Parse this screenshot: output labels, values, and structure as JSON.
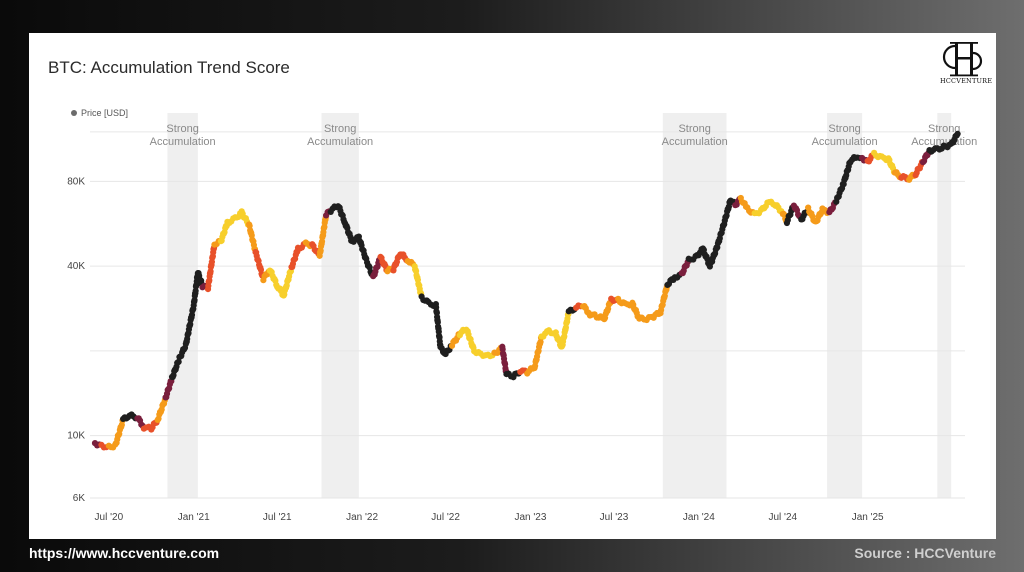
{
  "footer": {
    "website": "https://www.hccventure.com",
    "source": "Source : HCCVenture"
  },
  "logo": {
    "name": "hccventure-logo",
    "text": "HCCVENTURE"
  },
  "chart_data": {
    "type": "scatter",
    "title": "BTC: Accumulation Trend Score",
    "legend": {
      "label": "Price [USD]",
      "placement": "top-left"
    },
    "x_axis": {
      "type": "date",
      "range": [
        "2020-06-01",
        "2025-07-31"
      ],
      "tick_labels": [
        {
          "date": "2020-07-01",
          "label": "Jul '20"
        },
        {
          "date": "2021-01-01",
          "label": "Jan '21"
        },
        {
          "date": "2021-07-01",
          "label": "Jul '21"
        },
        {
          "date": "2022-01-01",
          "label": "Jan '22"
        },
        {
          "date": "2022-07-01",
          "label": "Jul '22"
        },
        {
          "date": "2023-01-01",
          "label": "Jan '23"
        },
        {
          "date": "2023-07-01",
          "label": "Jul '23"
        },
        {
          "date": "2024-01-01",
          "label": "Jan '24"
        },
        {
          "date": "2024-07-01",
          "label": "Jul '24"
        },
        {
          "date": "2025-01-01",
          "label": "Jan '25"
        }
      ]
    },
    "y_axis": {
      "scale": "log",
      "range": [
        6000,
        140000
      ],
      "tick_labels": [
        {
          "value": 6000,
          "label": "6K"
        },
        {
          "value": 10000,
          "label": "10K"
        },
        {
          "value": 40000,
          "label": "40K"
        },
        {
          "value": 80000,
          "label": "80K"
        }
      ],
      "gridlines": [
        6000,
        10000,
        20000,
        40000,
        80000,
        120000
      ]
    },
    "grid": true,
    "shaded_regions": [
      {
        "label": "Strong Accumulation",
        "start": "2020-11-05",
        "end": "2021-01-10"
      },
      {
        "label": "Strong Accumulation",
        "start": "2021-10-05",
        "end": "2021-12-25"
      },
      {
        "label": "Strong Accumulation",
        "start": "2023-10-15",
        "end": "2024-03-01"
      },
      {
        "label": "Strong Accumulation",
        "start": "2024-10-05",
        "end": "2024-12-20"
      },
      {
        "label": "Strong Accumulation",
        "start": "2025-06-01",
        "end": "2025-07-01"
      }
    ],
    "score_colors": {
      "strong": "#1f1f1f",
      "high": "#7a1f3d",
      "mid": "#e8512a",
      "low": "#f59b1a",
      "weak": "#f7cf2c"
    },
    "series": [
      {
        "data": [
          [
            "2020-06-01",
            9400,
            "high"
          ],
          [
            "2020-06-15",
            9200,
            "mid"
          ],
          [
            "2020-07-01",
            9100,
            "low"
          ],
          [
            "2020-07-15",
            9200,
            "low"
          ],
          [
            "2020-08-01",
            11400,
            "strong"
          ],
          [
            "2020-08-15",
            11800,
            "strong"
          ],
          [
            "2020-09-01",
            11600,
            "high"
          ],
          [
            "2020-09-15",
            10700,
            "mid"
          ],
          [
            "2020-10-01",
            10600,
            "mid"
          ],
          [
            "2020-10-15",
            11400,
            "low"
          ],
          [
            "2020-11-01",
            13600,
            "high"
          ],
          [
            "2020-11-15",
            16000,
            "strong"
          ],
          [
            "2020-12-01",
            18800,
            "strong"
          ],
          [
            "2020-12-15",
            21000,
            "strong"
          ],
          [
            "2021-01-01",
            29000,
            "strong"
          ],
          [
            "2021-01-10",
            38000,
            "strong"
          ],
          [
            "2021-01-20",
            34000,
            "high"
          ],
          [
            "2021-02-01",
            33500,
            "mid"
          ],
          [
            "2021-02-15",
            48000,
            "low"
          ],
          [
            "2021-03-01",
            49000,
            "weak"
          ],
          [
            "2021-03-15",
            57000,
            "weak"
          ],
          [
            "2021-04-01",
            59000,
            "weak"
          ],
          [
            "2021-04-15",
            62000,
            "weak"
          ],
          [
            "2021-05-01",
            56000,
            "low"
          ],
          [
            "2021-05-15",
            45000,
            "mid"
          ],
          [
            "2021-06-01",
            36000,
            "low"
          ],
          [
            "2021-06-15",
            39000,
            "weak"
          ],
          [
            "2021-07-01",
            34000,
            "weak"
          ],
          [
            "2021-07-15",
            31500,
            "weak"
          ],
          [
            "2021-08-01",
            39500,
            "mid"
          ],
          [
            "2021-08-15",
            46000,
            "mid"
          ],
          [
            "2021-09-01",
            48000,
            "low"
          ],
          [
            "2021-09-15",
            47500,
            "mid"
          ],
          [
            "2021-10-01",
            43500,
            "low"
          ],
          [
            "2021-10-15",
            61000,
            "high"
          ],
          [
            "2021-10-25",
            63000,
            "strong"
          ],
          [
            "2021-11-10",
            66000,
            "strong"
          ],
          [
            "2021-11-25",
            57000,
            "strong"
          ],
          [
            "2021-12-10",
            49000,
            "strong"
          ],
          [
            "2021-12-25",
            50500,
            "strong"
          ],
          [
            "2022-01-10",
            42000,
            "strong"
          ],
          [
            "2022-01-25",
            36500,
            "high"
          ],
          [
            "2022-02-10",
            43000,
            "mid"
          ],
          [
            "2022-02-25",
            38500,
            "low"
          ],
          [
            "2022-03-10",
            39000,
            "mid"
          ],
          [
            "2022-03-25",
            44500,
            "mid"
          ],
          [
            "2022-04-10",
            42000,
            "low"
          ],
          [
            "2022-04-25",
            40000,
            "weak"
          ],
          [
            "2022-05-10",
            31000,
            "strong"
          ],
          [
            "2022-05-25",
            29500,
            "strong"
          ],
          [
            "2022-06-10",
            29000,
            "strong"
          ],
          [
            "2022-06-20",
            20500,
            "strong"
          ],
          [
            "2022-07-01",
            19500,
            "strong"
          ],
          [
            "2022-07-15",
            21000,
            "low"
          ],
          [
            "2022-08-01",
            23000,
            "weak"
          ],
          [
            "2022-08-15",
            24000,
            "weak"
          ],
          [
            "2022-09-01",
            20000,
            "weak"
          ],
          [
            "2022-09-15",
            19500,
            "weak"
          ],
          [
            "2022-10-01",
            19200,
            "weak"
          ],
          [
            "2022-10-15",
            19500,
            "low"
          ],
          [
            "2022-11-01",
            20500,
            "high"
          ],
          [
            "2022-11-10",
            16500,
            "strong"
          ],
          [
            "2022-11-25",
            16200,
            "strong"
          ],
          [
            "2022-12-10",
            17000,
            "mid"
          ],
          [
            "2022-12-25",
            16800,
            "low"
          ],
          [
            "2023-01-10",
            17500,
            "low"
          ],
          [
            "2023-01-25",
            22500,
            "weak"
          ],
          [
            "2023-02-10",
            23500,
            "weak"
          ],
          [
            "2023-02-25",
            23000,
            "weak"
          ],
          [
            "2023-03-10",
            20500,
            "weak"
          ],
          [
            "2023-03-25",
            27500,
            "strong"
          ],
          [
            "2023-04-10",
            28500,
            "mid"
          ],
          [
            "2023-04-25",
            29000,
            "low"
          ],
          [
            "2023-05-10",
            27000,
            "low"
          ],
          [
            "2023-05-25",
            26500,
            "low"
          ],
          [
            "2023-06-10",
            26000,
            "low"
          ],
          [
            "2023-06-25",
            30500,
            "mid"
          ],
          [
            "2023-07-10",
            30300,
            "low"
          ],
          [
            "2023-07-25",
            29200,
            "low"
          ],
          [
            "2023-08-10",
            29400,
            "low"
          ],
          [
            "2023-08-25",
            26000,
            "low"
          ],
          [
            "2023-09-10",
            25900,
            "low"
          ],
          [
            "2023-09-25",
            26500,
            "low"
          ],
          [
            "2023-10-10",
            27500,
            "low"
          ],
          [
            "2023-10-25",
            34500,
            "strong"
          ],
          [
            "2023-11-10",
            36500,
            "strong"
          ],
          [
            "2023-11-25",
            37500,
            "high"
          ],
          [
            "2023-12-10",
            42000,
            "strong"
          ],
          [
            "2023-12-25",
            43000,
            "strong"
          ],
          [
            "2024-01-10",
            46000,
            "strong"
          ],
          [
            "2024-01-25",
            40000,
            "strong"
          ],
          [
            "2024-02-10",
            47000,
            "strong"
          ],
          [
            "2024-02-25",
            57000,
            "strong"
          ],
          [
            "2024-03-10",
            69000,
            "strong"
          ],
          [
            "2024-03-20",
            66000,
            "high"
          ],
          [
            "2024-04-01",
            69500,
            "low"
          ],
          [
            "2024-04-15",
            64000,
            "low"
          ],
          [
            "2024-05-01",
            61000,
            "weak"
          ],
          [
            "2024-05-15",
            63000,
            "weak"
          ],
          [
            "2024-06-01",
            67500,
            "weak"
          ],
          [
            "2024-06-15",
            66000,
            "weak"
          ],
          [
            "2024-07-01",
            62000,
            "low"
          ],
          [
            "2024-07-10",
            57500,
            "strong"
          ],
          [
            "2024-07-25",
            66000,
            "high"
          ],
          [
            "2024-08-10",
            58500,
            "strong"
          ],
          [
            "2024-08-25",
            64000,
            "low"
          ],
          [
            "2024-09-10",
            57000,
            "low"
          ],
          [
            "2024-09-25",
            63500,
            "low"
          ],
          [
            "2024-10-10",
            62000,
            "high"
          ],
          [
            "2024-10-25",
            68000,
            "strong"
          ],
          [
            "2024-11-10",
            79000,
            "strong"
          ],
          [
            "2024-11-25",
            95000,
            "strong"
          ],
          [
            "2024-12-10",
            98000,
            "strong"
          ],
          [
            "2024-12-20",
            97000,
            "high"
          ],
          [
            "2025-01-01",
            94000,
            "mid"
          ],
          [
            "2025-01-15",
            100000,
            "weak"
          ],
          [
            "2025-02-01",
            97000,
            "weak"
          ],
          [
            "2025-02-15",
            96000,
            "weak"
          ],
          [
            "2025-03-01",
            86000,
            "low"
          ],
          [
            "2025-03-15",
            83000,
            "mid"
          ],
          [
            "2025-04-01",
            82000,
            "low"
          ],
          [
            "2025-04-15",
            85000,
            "mid"
          ],
          [
            "2025-05-01",
            94000,
            "high"
          ],
          [
            "2025-05-15",
            103000,
            "strong"
          ],
          [
            "2025-06-01",
            104000,
            "strong"
          ],
          [
            "2025-06-15",
            106000,
            "strong"
          ],
          [
            "2025-07-01",
            108000,
            "strong"
          ],
          [
            "2025-07-15",
            118000,
            "strong"
          ]
        ]
      }
    ]
  }
}
